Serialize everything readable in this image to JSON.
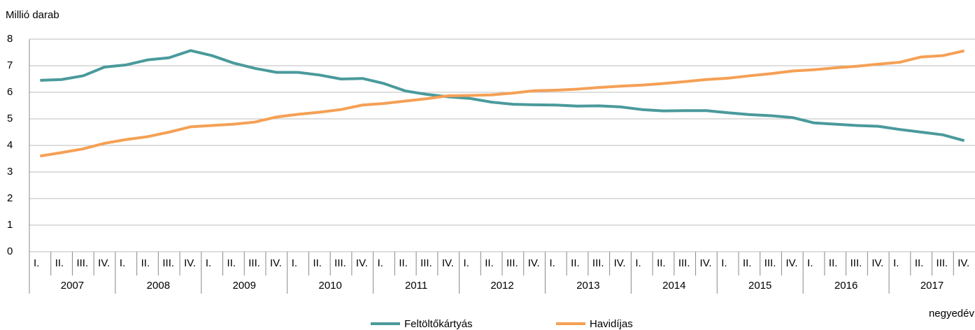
{
  "chart_data": {
    "type": "line",
    "y_label": "Millió darab",
    "x_label": "negyedév",
    "categories": [
      "I.",
      "II.",
      "III.",
      "IV.",
      "I.",
      "II.",
      "III.",
      "IV.",
      "I.",
      "II.",
      "III.",
      "IV.",
      "I.",
      "II.",
      "III.",
      "IV.",
      "I.",
      "II.",
      "III.",
      "IV.",
      "I.",
      "II.",
      "III.",
      "IV.",
      "I.",
      "II.",
      "III.",
      "IV.",
      "I.",
      "II.",
      "III.",
      "IV.",
      "I.",
      "II.",
      "III.",
      "IV.",
      "I.",
      "II.",
      "III.",
      "IV.",
      "I.",
      "II.",
      "III.",
      "IV."
    ],
    "groups": [
      "2007",
      "2008",
      "2009",
      "2010",
      "2011",
      "2012",
      "2013",
      "2014",
      "2015",
      "2016",
      "2017"
    ],
    "series": [
      {
        "name": "Feltöltőkártyás",
        "color": "#4a9a9c",
        "values": [
          6.45,
          6.48,
          6.62,
          6.95,
          7.03,
          7.22,
          7.3,
          7.57,
          7.38,
          7.1,
          6.9,
          6.75,
          6.75,
          6.65,
          6.5,
          6.52,
          6.33,
          6.05,
          5.92,
          5.83,
          5.77,
          5.63,
          5.55,
          5.53,
          5.52,
          5.48,
          5.49,
          5.45,
          5.35,
          5.3,
          5.31,
          5.31,
          5.23,
          5.16,
          5.12,
          5.05,
          4.85,
          4.8,
          4.75,
          4.72,
          4.6,
          4.5,
          4.4,
          4.18
        ]
      },
      {
        "name": "Havidíjas",
        "color": "#f5a055",
        "values": [
          3.6,
          3.73,
          3.87,
          4.08,
          4.22,
          4.33,
          4.5,
          4.7,
          4.75,
          4.8,
          4.88,
          5.07,
          5.17,
          5.25,
          5.35,
          5.52,
          5.58,
          5.67,
          5.76,
          5.87,
          5.88,
          5.9,
          5.97,
          6.06,
          6.08,
          6.12,
          6.18,
          6.23,
          6.27,
          6.33,
          6.4,
          6.48,
          6.53,
          6.62,
          6.7,
          6.8,
          6.85,
          6.92,
          6.98,
          7.06,
          7.13,
          7.33,
          7.38,
          7.56
        ]
      }
    ],
    "ylim": [
      0,
      8
    ],
    "yticks": [
      0,
      1,
      2,
      3,
      4,
      5,
      6,
      7,
      8
    ],
    "grid": true
  }
}
